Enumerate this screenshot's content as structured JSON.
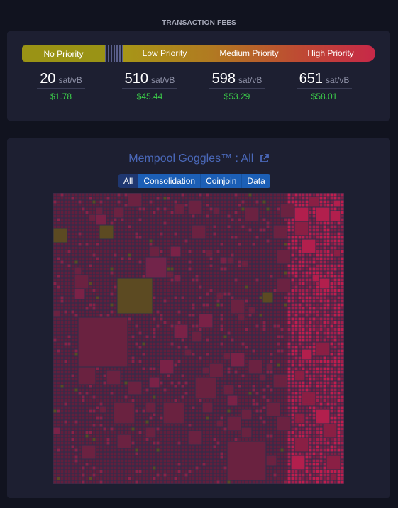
{
  "fees": {
    "section_title": "TRANSACTION FEES",
    "bar": {
      "no_priority": "No Priority",
      "low_priority": "Low Priority",
      "medium_priority": "Medium Priority",
      "high_priority": "High Priority"
    },
    "unit": "sat/vB",
    "columns": [
      {
        "rate": "20",
        "usd": "$1.78"
      },
      {
        "rate": "510",
        "usd": "$45.44"
      },
      {
        "rate": "598",
        "usd": "$53.29"
      },
      {
        "rate": "651",
        "usd": "$58.01"
      }
    ]
  },
  "goggles": {
    "title": "Mempool Goggles™ : All",
    "link_icon": "external-link-icon",
    "filters": [
      {
        "label": "All",
        "active": true
      },
      {
        "label": "Consolidation",
        "active": false
      },
      {
        "label": "Coinjoin",
        "active": false
      },
      {
        "label": "Data",
        "active": false
      }
    ]
  },
  "colors": {
    "background": "#11131f",
    "card": "#1d1f31",
    "usd_green": "#3bcc49",
    "accent_blue": "#4a68b9",
    "filter_blue": "#1c5fb6",
    "block_low": "#611f3d",
    "block_high": "#c21d4e",
    "block_olive": "#5c4a22"
  }
}
